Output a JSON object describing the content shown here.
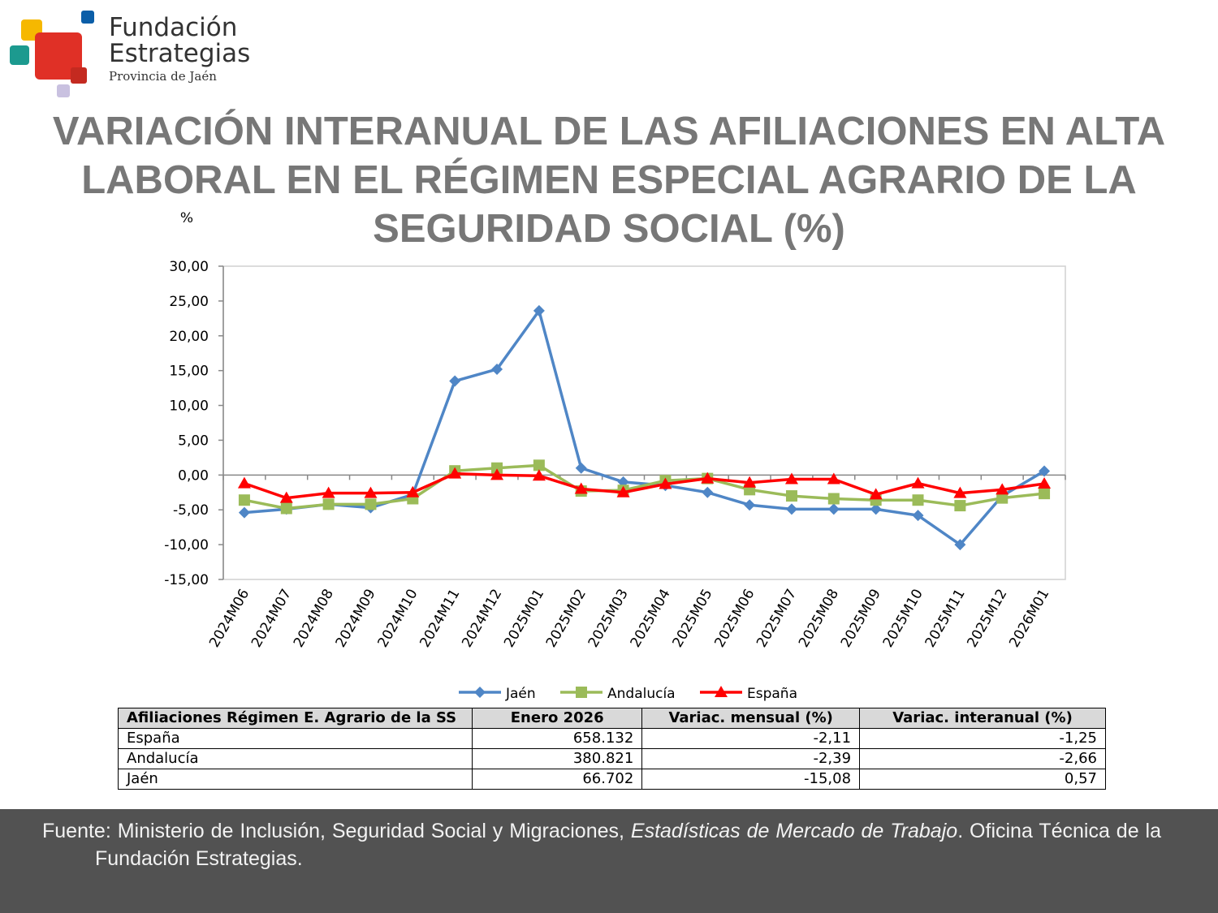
{
  "logo": {
    "line1": "Fundación",
    "line2": "Estrategias",
    "line3": "Provincia de Jaén"
  },
  "chart_data": {
    "type": "line",
    "title": "VARIACIÓN INTERANUAL DE LAS AFILIACIONES EN ALTA LABORAL EN EL RÉGIMEN ESPECIAL AGRARIO DE LA SEGURIDAD SOCIAL (%)",
    "y_label": "%",
    "categories": [
      "2024M06",
      "2024M07",
      "2024M08",
      "2024M09",
      "2024M10",
      "2024M11",
      "2024M12",
      "2025M01",
      "2025M02",
      "2025M03",
      "2025M04",
      "2025M05",
      "2025M06",
      "2025M07",
      "2025M08",
      "2025M09",
      "2025M10",
      "2025M11",
      "2025M12",
      "2026M01"
    ],
    "series": [
      {
        "name": "Jaén",
        "color": "#4f86c6",
        "marker": "diamond",
        "values": [
          -5.4,
          -4.9,
          -4.2,
          -4.7,
          -2.8,
          13.5,
          15.2,
          23.6,
          1.0,
          -1.0,
          -1.5,
          -2.5,
          -4.3,
          -4.9,
          -4.9,
          -4.9,
          -5.8,
          -10.0,
          -3.0,
          0.57
        ]
      },
      {
        "name": "Andalucía",
        "color": "#9bbb59",
        "marker": "square",
        "values": [
          -3.6,
          -4.8,
          -4.2,
          -4.2,
          -3.4,
          0.6,
          1.0,
          1.4,
          -2.3,
          -2.2,
          -0.8,
          -0.5,
          -2.1,
          -3.0,
          -3.4,
          -3.6,
          -3.6,
          -4.4,
          -3.3,
          -2.66
        ]
      },
      {
        "name": "España",
        "color": "#ff0000",
        "marker": "triangle",
        "values": [
          -1.2,
          -3.3,
          -2.6,
          -2.6,
          -2.5,
          0.2,
          0.0,
          -0.1,
          -2.0,
          -2.5,
          -1.3,
          -0.5,
          -1.1,
          -0.6,
          -0.6,
          -2.8,
          -1.2,
          -2.6,
          -2.1,
          -1.25
        ]
      }
    ],
    "ylim": [
      -15,
      30
    ],
    "yticks": [
      {
        "value": -15,
        "label": "-15,00"
      },
      {
        "value": -10,
        "label": "-10,00"
      },
      {
        "value": -5,
        "label": "-5,00"
      },
      {
        "value": 0,
        "label": "0,00"
      },
      {
        "value": 5,
        "label": "5,00"
      },
      {
        "value": 10,
        "label": "10,00"
      },
      {
        "value": 15,
        "label": "15,00"
      },
      {
        "value": 20,
        "label": "20,00"
      },
      {
        "value": 25,
        "label": "25,00"
      },
      {
        "value": 30,
        "label": "30,00"
      }
    ],
    "grid": false,
    "legend": "bottom"
  },
  "table": {
    "header": [
      "Afiliaciones Régimen E. Agrario de la SS",
      "Enero 2026",
      "Variac. mensual (%)",
      "Variac. interanual (%)"
    ],
    "rows": [
      [
        "España",
        "658.132",
        "-2,11",
        "-1,25"
      ],
      [
        "Andalucía",
        "380.821",
        "-2,39",
        "-2,66"
      ],
      [
        "Jaén",
        "66.702",
        "-15,08",
        "0,57"
      ]
    ]
  },
  "footer": {
    "before": "Fuente: Ministerio de Inclusión, Seguridad Social y Migraciones, ",
    "italic": "Estadísticas de Mercado de Trabajo",
    "after": ". Oficina Técnica de la Fundación Estrategias."
  }
}
